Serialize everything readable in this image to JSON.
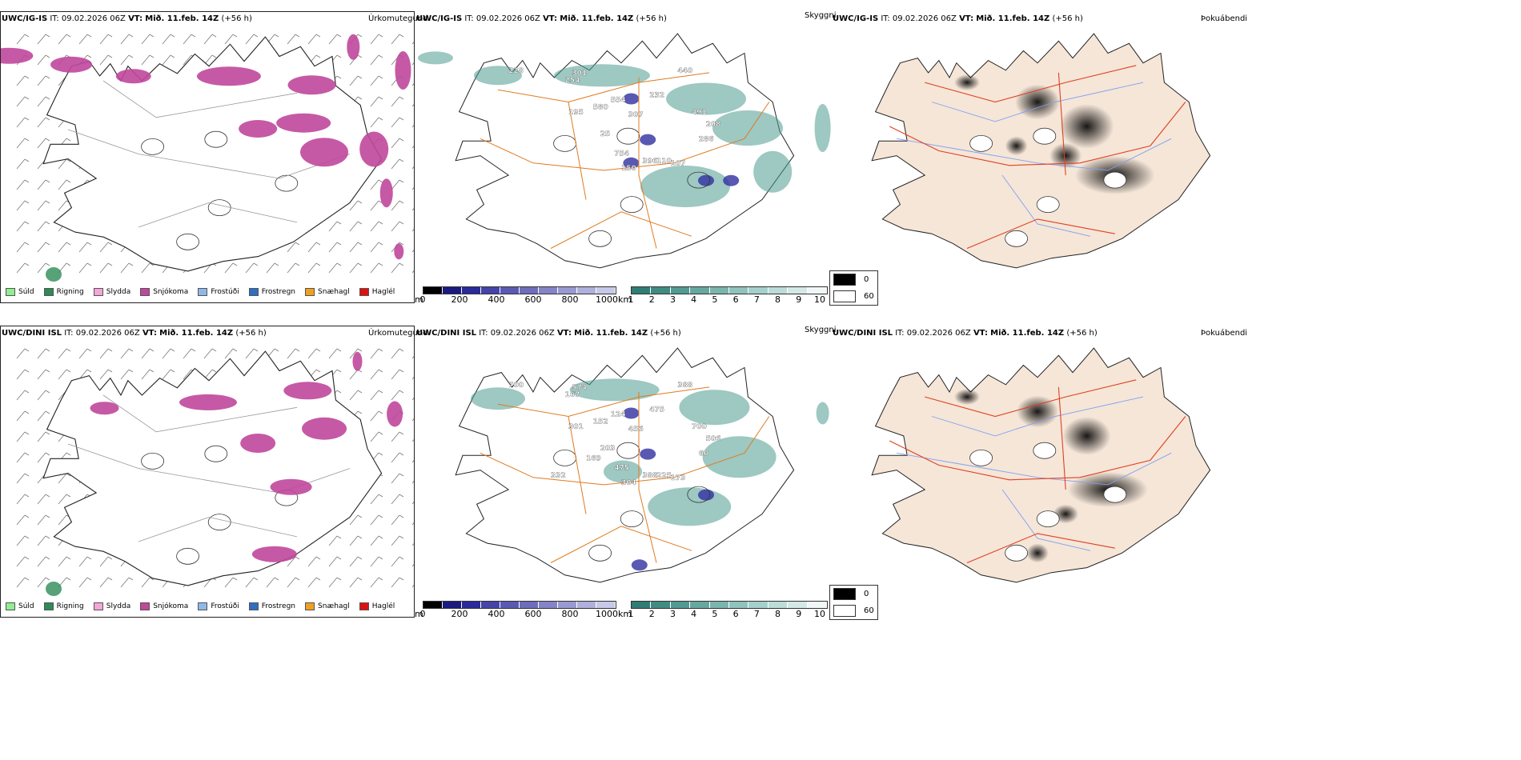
{
  "panels": [
    {
      "model": "UWC/IG-IS",
      "it": "IT: 09.02.2026 06Z",
      "vt_label": "VT:",
      "vt": "Mið. 11.feb. 14Z",
      "lead": "(+56 h)",
      "tags": [
        "Úrkomutegund",
        "Skyggni",
        "Þokuábendi"
      ]
    },
    {
      "model": "UWC/DINI ISL",
      "it": "IT: 09.02.2026 06Z",
      "vt_label": "VT:",
      "vt": "Mið. 11.feb. 14Z",
      "lead": "(+56 h)",
      "tags": [
        "Úrkomutegund",
        "Skyggni",
        "Þokuábendi"
      ]
    }
  ],
  "precip_legend": [
    {
      "label": "Súld",
      "color": "#90ee90"
    },
    {
      "label": "Rigning",
      "color": "#2e8b57"
    },
    {
      "label": "Slydda",
      "color": "#f4a6d7"
    },
    {
      "label": "Snjókoma",
      "color": "#c0479c"
    },
    {
      "label": "Frostúði",
      "color": "#8fb8e8"
    },
    {
      "label": "Frostregn",
      "color": "#2f6fc0"
    },
    {
      "label": "Snæhagl",
      "color": "#f0a020"
    },
    {
      "label": "Haglél",
      "color": "#e01010"
    }
  ],
  "ceiling_scale": {
    "unit": "m",
    "ticks": [
      "0",
      "200",
      "400",
      "600",
      "800",
      "1000"
    ]
  },
  "vis_scale": {
    "unit": "km",
    "ticks": [
      "1",
      "2",
      "3",
      "4",
      "5",
      "6",
      "7",
      "8",
      "9",
      "10"
    ]
  },
  "fog_legend": [
    {
      "label": "0",
      "color": "#000000"
    },
    {
      "label": "60",
      "color": "#ffffff"
    }
  ],
  "skyggni_labels_top": [
    "228",
    "301",
    "254",
    "195",
    "580",
    "554",
    "307",
    "232",
    "440",
    "491",
    "208",
    "286",
    "754",
    "150",
    "396",
    "110",
    "107",
    "25"
  ],
  "skyggni_labels_bottom": [
    "700",
    "574",
    "167",
    "301",
    "152",
    "124",
    "456",
    "475",
    "388",
    "700",
    "506",
    "60",
    "475",
    "304",
    "388",
    "225",
    "173",
    "203",
    "169",
    "332"
  ],
  "colors": {
    "land": "#f5e6d8",
    "roads": "#e07b20",
    "rivers": "#7fa0f0",
    "snow": "#c0479c",
    "vis": "#4e9a8f",
    "ceiling": "#3030a0"
  }
}
